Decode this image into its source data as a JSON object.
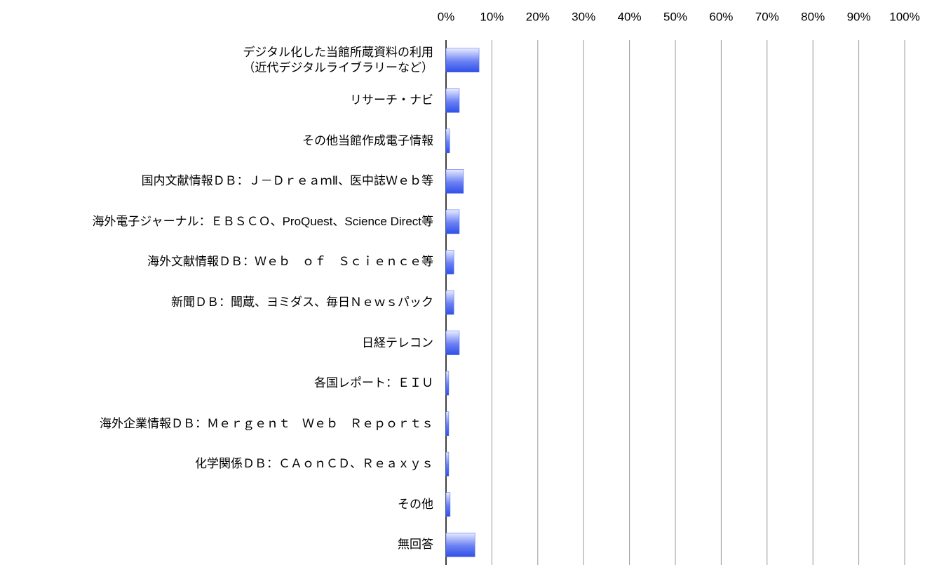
{
  "chart_data": {
    "type": "barh",
    "categories": [
      "デジタル化した当館所蔵資料の利用\n（近代デジタルライブラリーなど）",
      "リサーチ・ナビ",
      "その他当館作成電子情報",
      "国内文献情報ＤＢ：Ｊ－ＤｒｅａｍⅡ、医中誌Ｗｅｂ等",
      "海外電子ジャーナル：ＥＢＳＣＯ、ProQuest、Science Direct等",
      "海外文献情報ＤＢ：Ｗｅｂ　ｏｆ　Ｓｃｉｅｎｃｅ等",
      "新聞ＤＢ：聞蔵、ヨミダス、毎日Ｎｅｗｓパック",
      "日経テレコン",
      "各国レポート：ＥＩＵ",
      "海外企業情報ＤＢ：Ｍｅｒｇｅｎｔ　Ｗｅｂ　Ｒｅｐｏｒｔｓ",
      "化学関係ＤＢ：ＣＡｏｎＣＤ、Ｒｅａｘｙｓ",
      "その他",
      "無回答"
    ],
    "values": [
      7.2,
      2.9,
      0.8,
      3.8,
      2.9,
      1.7,
      1.7,
      2.9,
      0.6,
      0.6,
      0.6,
      0.9,
      6.3
    ],
    "color": "#4060f0",
    "xlim": [
      0,
      100
    ],
    "xticks": [
      {
        "value": 0,
        "label": "0%"
      },
      {
        "value": 10,
        "label": "10%"
      },
      {
        "value": 20,
        "label": "20%"
      },
      {
        "value": 30,
        "label": "30%"
      },
      {
        "value": 40,
        "label": "40%"
      },
      {
        "value": 50,
        "label": "50%"
      },
      {
        "value": 60,
        "label": "60%"
      },
      {
        "value": 70,
        "label": "70%"
      },
      {
        "value": 80,
        "label": "80%"
      },
      {
        "value": 90,
        "label": "90%"
      },
      {
        "value": 100,
        "label": "100%"
      }
    ],
    "grid": true
  }
}
